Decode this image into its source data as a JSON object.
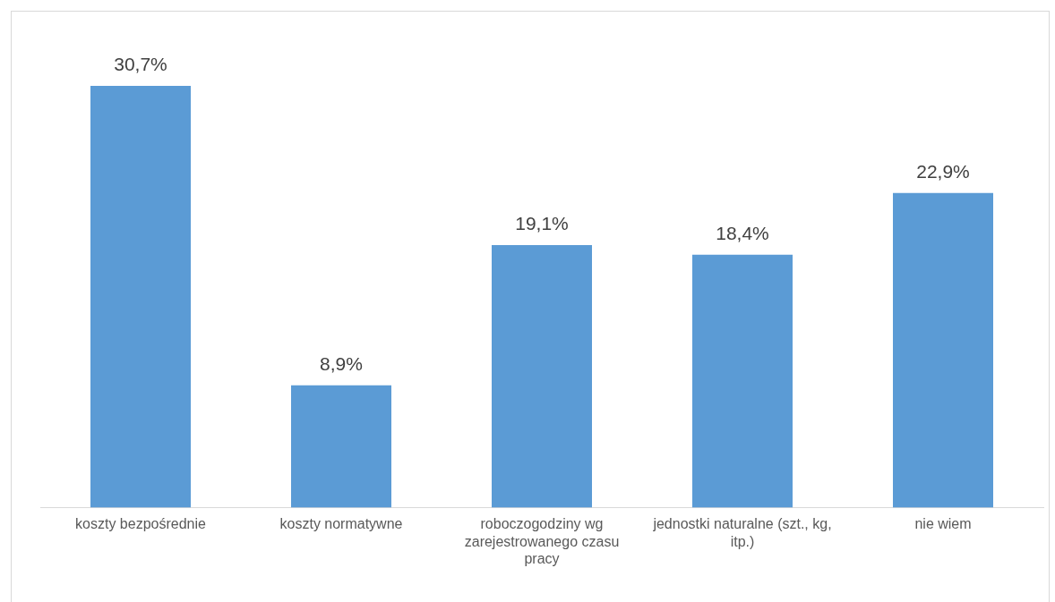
{
  "chart_data": {
    "type": "bar",
    "categories": [
      "koszty bezpośrednie",
      "koszty normatywne",
      "roboczogodziny wg zarejestrowanego czasu pracy",
      "jednostki naturalne (szt., kg, itp.)",
      "nie wiem"
    ],
    "values": [
      30.7,
      8.9,
      19.1,
      18.4,
      22.9
    ],
    "value_labels": [
      "30,7%",
      "8,9%",
      "19,1%",
      "18,4%",
      "22,9%"
    ],
    "color": "#5b9bd5",
    "grid": false,
    "legend": false
  }
}
